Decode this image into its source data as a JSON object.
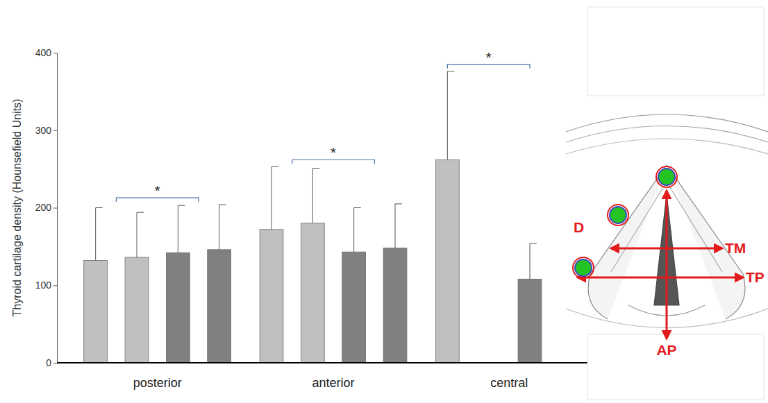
{
  "chart_data": {
    "type": "bar",
    "y_label": "Thyroid cartilage density (Hounsefield Units)",
    "categories": [
      "posterior",
      "anterior",
      "central"
    ],
    "series": [
      {
        "color": "#c0c0c0",
        "values": [
          132,
          172,
          262
        ],
        "errors": [
          68,
          81,
          114
        ]
      },
      {
        "color": "#c0c0c0",
        "values": [
          136,
          180,
          null
        ],
        "errors": [
          58,
          71,
          null
        ]
      },
      {
        "color": "#808080",
        "values": [
          142,
          143,
          108
        ],
        "errors": [
          61,
          57,
          46
        ]
      },
      {
        "color": "#808080",
        "values": [
          146,
          148,
          null
        ],
        "errors": [
          58,
          57,
          null
        ]
      }
    ],
    "ylim": [
      0,
      400
    ],
    "yticks": [
      0,
      100,
      200,
      300,
      400
    ],
    "grid": false,
    "annotations": [
      {
        "text": "*",
        "category": 0
      },
      {
        "text": "*",
        "category": 1
      },
      {
        "text": "*",
        "category": 2
      }
    ]
  },
  "diagram": {
    "labels": [
      "D",
      "TM",
      "TP",
      "AP"
    ]
  }
}
